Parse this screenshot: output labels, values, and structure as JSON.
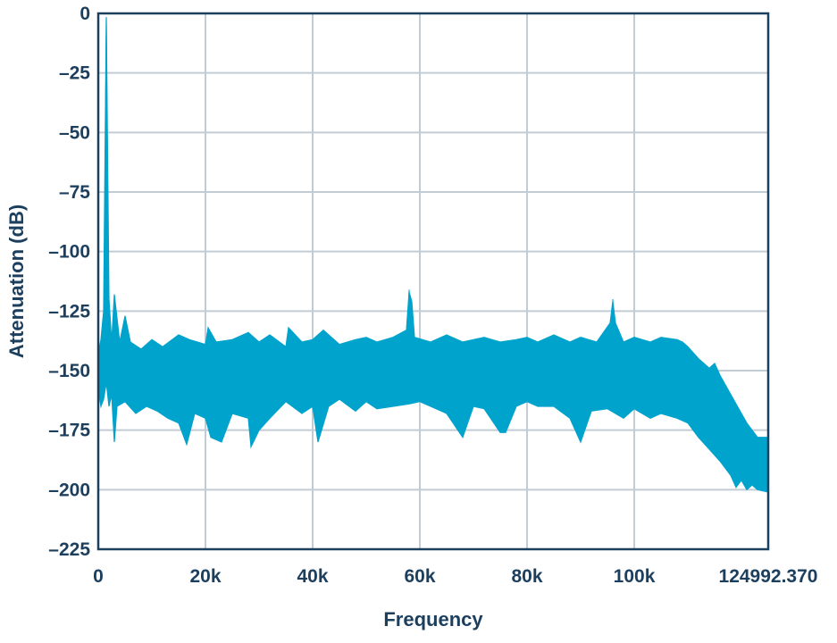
{
  "chart_data": {
    "type": "area",
    "xlabel": "Frequency",
    "ylabel": "Attenuation (dB)",
    "xlim": [
      0,
      124992.37
    ],
    "ylim": [
      -225,
      0
    ],
    "grid": true,
    "x_ticks": [
      {
        "value": 0,
        "label": "0"
      },
      {
        "value": 20000,
        "label": "20k"
      },
      {
        "value": 40000,
        "label": "40k"
      },
      {
        "value": 60000,
        "label": "60k"
      },
      {
        "value": 80000,
        "label": "80k"
      },
      {
        "value": 100000,
        "label": "100k"
      },
      {
        "value": 124992.37,
        "label": "124992.370"
      }
    ],
    "y_ticks": [
      {
        "value": 0,
        "label": "0"
      },
      {
        "value": -25,
        "label": "–25"
      },
      {
        "value": -50,
        "label": "–50"
      },
      {
        "value": -75,
        "label": "–75"
      },
      {
        "value": -100,
        "label": "–100"
      },
      {
        "value": -125,
        "label": "–125"
      },
      {
        "value": -150,
        "label": "–150"
      },
      {
        "value": -175,
        "label": "–175"
      },
      {
        "value": -200,
        "label": "–200"
      },
      {
        "value": -225,
        "label": "–225"
      }
    ],
    "colors": {
      "series": "#00a3cc",
      "axis": "#1c3f5e",
      "grid": "#c2ccd4"
    },
    "series": [
      {
        "upper_envelope": [
          [
            0,
            -143
          ],
          [
            500,
            -137
          ],
          [
            1000,
            -125
          ],
          [
            1500,
            -2
          ],
          [
            2000,
            -120
          ],
          [
            2500,
            -138
          ],
          [
            3000,
            -118
          ],
          [
            4000,
            -138
          ],
          [
            5000,
            -127
          ],
          [
            6000,
            -138
          ],
          [
            8000,
            -141
          ],
          [
            10000,
            -137
          ],
          [
            12000,
            -140
          ],
          [
            15000,
            -135
          ],
          [
            17000,
            -137
          ],
          [
            20000,
            -139
          ],
          [
            20500,
            -132
          ],
          [
            22000,
            -138
          ],
          [
            25000,
            -137
          ],
          [
            28000,
            -134
          ],
          [
            30000,
            -138
          ],
          [
            32000,
            -135
          ],
          [
            35000,
            -140
          ],
          [
            35500,
            -132
          ],
          [
            38000,
            -138
          ],
          [
            40000,
            -137
          ],
          [
            42000,
            -133
          ],
          [
            45000,
            -139
          ],
          [
            48000,
            -137
          ],
          [
            50000,
            -136
          ],
          [
            52000,
            -138
          ],
          [
            55000,
            -136
          ],
          [
            57500,
            -133
          ],
          [
            58000,
            -117
          ],
          [
            58500,
            -121
          ],
          [
            59000,
            -136
          ],
          [
            62000,
            -138
          ],
          [
            65000,
            -135
          ],
          [
            68000,
            -138
          ],
          [
            70000,
            -137
          ],
          [
            72000,
            -136
          ],
          [
            75000,
            -138
          ],
          [
            78000,
            -137
          ],
          [
            80000,
            -136
          ],
          [
            82000,
            -138
          ],
          [
            85000,
            -135
          ],
          [
            88000,
            -138
          ],
          [
            90000,
            -136
          ],
          [
            93000,
            -138
          ],
          [
            95500,
            -130
          ],
          [
            96000,
            -121
          ],
          [
            96500,
            -130
          ],
          [
            98000,
            -138
          ],
          [
            100000,
            -136
          ],
          [
            103000,
            -138
          ],
          [
            105000,
            -136
          ],
          [
            108000,
            -137
          ],
          [
            109000,
            -138
          ],
          [
            110000,
            -140
          ],
          [
            112000,
            -145
          ],
          [
            114000,
            -149
          ],
          [
            115000,
            -147
          ],
          [
            116000,
            -152
          ],
          [
            118000,
            -160
          ],
          [
            120000,
            -168
          ],
          [
            121000,
            -172
          ],
          [
            122000,
            -175
          ],
          [
            123000,
            -178
          ],
          [
            124992.37,
            -178
          ]
        ],
        "lower_envelope": [
          [
            0,
            -158
          ],
          [
            500,
            -165
          ],
          [
            1000,
            -162
          ],
          [
            1500,
            -155
          ],
          [
            2000,
            -165
          ],
          [
            2500,
            -160
          ],
          [
            3000,
            -180
          ],
          [
            3500,
            -165
          ],
          [
            5000,
            -163
          ],
          [
            7000,
            -168
          ],
          [
            9000,
            -165
          ],
          [
            11000,
            -167
          ],
          [
            13000,
            -170
          ],
          [
            15000,
            -172
          ],
          [
            16500,
            -181
          ],
          [
            18000,
            -168
          ],
          [
            20000,
            -170
          ],
          [
            21000,
            -178
          ],
          [
            23000,
            -180
          ],
          [
            25000,
            -168
          ],
          [
            28000,
            -170
          ],
          [
            28500,
            -182
          ],
          [
            30000,
            -175
          ],
          [
            32000,
            -170
          ],
          [
            35000,
            -163
          ],
          [
            38000,
            -168
          ],
          [
            40000,
            -165
          ],
          [
            41000,
            -180
          ],
          [
            43000,
            -165
          ],
          [
            45000,
            -162
          ],
          [
            48000,
            -167
          ],
          [
            50000,
            -163
          ],
          [
            52000,
            -166
          ],
          [
            55000,
            -165
          ],
          [
            58000,
            -164
          ],
          [
            60000,
            -163
          ],
          [
            62000,
            -165
          ],
          [
            65000,
            -168
          ],
          [
            68000,
            -178
          ],
          [
            70000,
            -165
          ],
          [
            72000,
            -166
          ],
          [
            75000,
            -176
          ],
          [
            76000,
            -176
          ],
          [
            78000,
            -165
          ],
          [
            80000,
            -163
          ],
          [
            82000,
            -165
          ],
          [
            85000,
            -165
          ],
          [
            88000,
            -170
          ],
          [
            90000,
            -180
          ],
          [
            92000,
            -167
          ],
          [
            95000,
            -166
          ],
          [
            98000,
            -170
          ],
          [
            100000,
            -166
          ],
          [
            103000,
            -170
          ],
          [
            105000,
            -168
          ],
          [
            108000,
            -170
          ],
          [
            110000,
            -172
          ],
          [
            112000,
            -178
          ],
          [
            114000,
            -183
          ],
          [
            116000,
            -188
          ],
          [
            118000,
            -194
          ],
          [
            119000,
            -199
          ],
          [
            120000,
            -196
          ],
          [
            121000,
            -200
          ],
          [
            122000,
            -198
          ],
          [
            123000,
            -200
          ],
          [
            124992.37,
            -201
          ]
        ],
        "peaks": [
          {
            "x": 1500,
            "y": -1.5
          },
          {
            "x": 58000,
            "y": -116
          },
          {
            "x": 96000,
            "y": -120
          }
        ]
      }
    ]
  }
}
